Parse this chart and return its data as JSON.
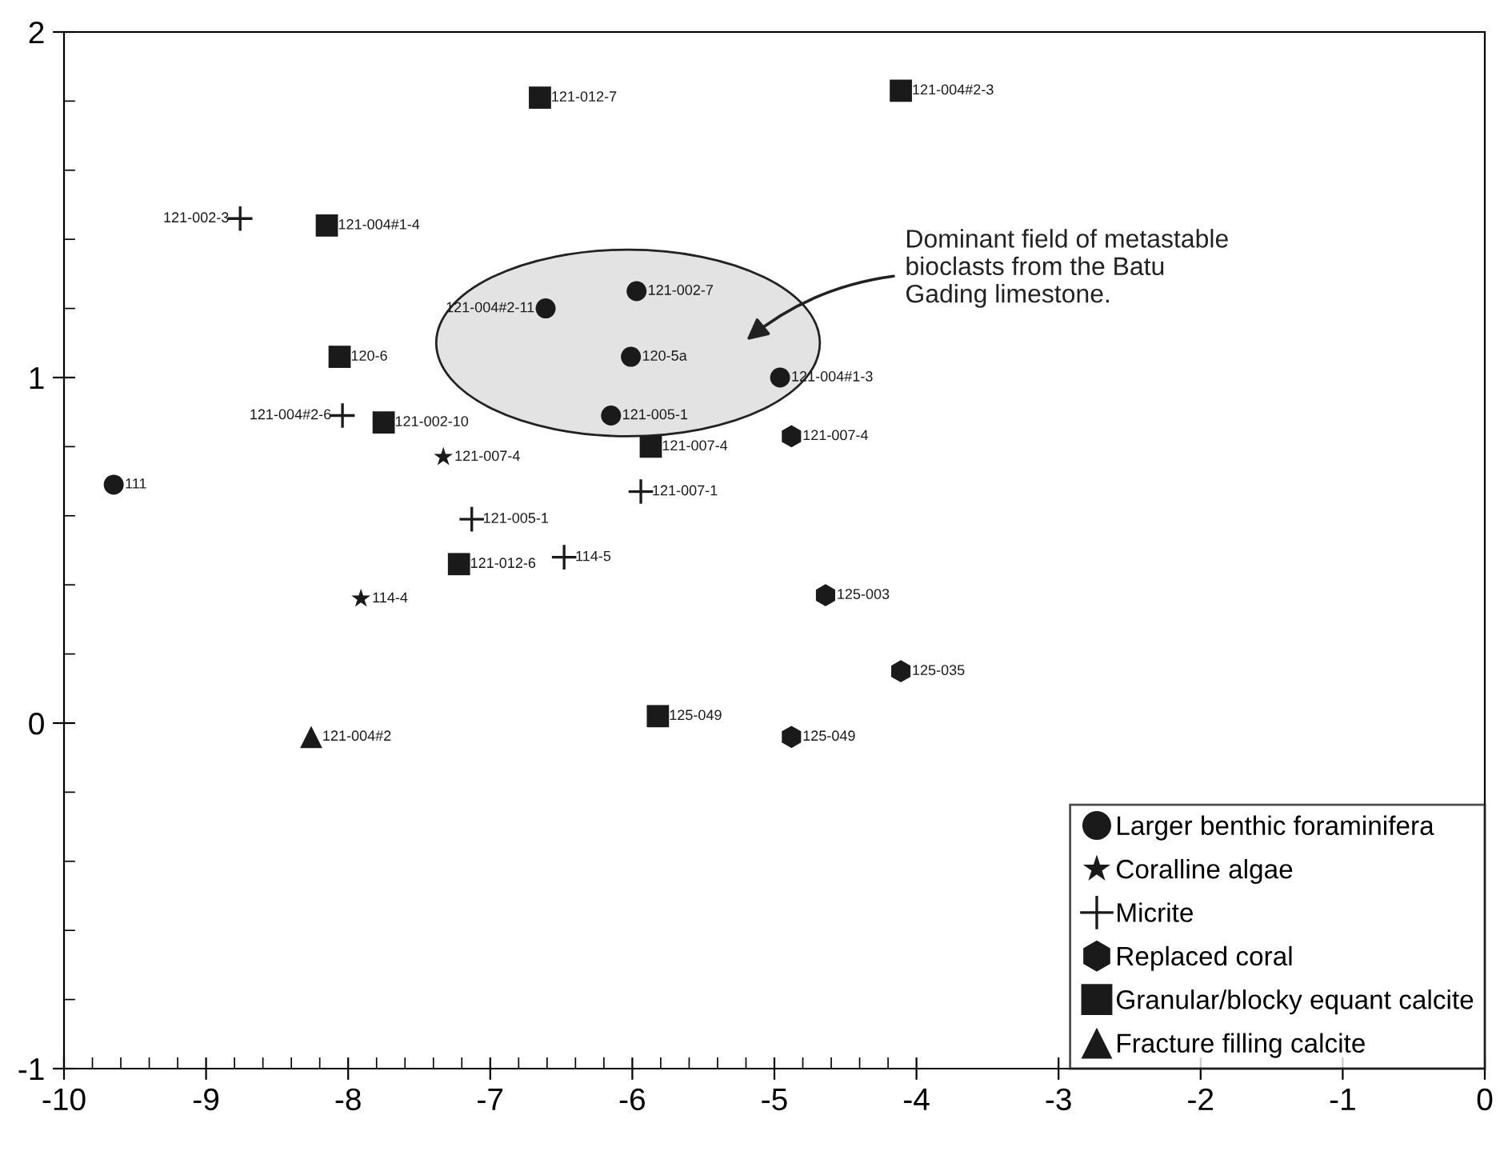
{
  "chart_data": {
    "type": "scatter",
    "xlim": [
      -10,
      0
    ],
    "ylim": [
      -1,
      2
    ],
    "xticks": [
      -10,
      -9,
      -8,
      -7,
      -6,
      -5,
      -4,
      -3,
      -2,
      -1,
      0,
      {
        "value": -9.8,
        "label": null
      },
      {
        "value": -9.6,
        "label": null
      },
      {
        "value": -9.4,
        "label": null
      },
      {
        "value": -9.2,
        "label": null
      },
      {
        "value": -8.8,
        "label": null
      },
      {
        "value": -8.6,
        "label": null
      },
      {
        "value": -8.4,
        "label": null
      },
      {
        "value": -8.2,
        "label": null
      },
      {
        "value": -7.8,
        "label": null
      },
      {
        "value": -7.6,
        "label": null
      },
      {
        "value": -7.4,
        "label": null
      },
      {
        "value": -7.2,
        "label": null
      },
      {
        "value": -6.8,
        "label": null
      },
      {
        "value": -6.6,
        "label": null
      },
      {
        "value": -6.4,
        "label": null
      },
      {
        "value": -6.2,
        "label": null
      },
      {
        "value": -5.8,
        "label": null
      },
      {
        "value": -5.6,
        "label": null
      },
      {
        "value": -5.4,
        "label": null
      },
      {
        "value": -5.2,
        "label": null
      },
      {
        "value": -4.8,
        "label": null
      },
      {
        "value": -4.6,
        "label": null
      },
      {
        "value": -4.4,
        "label": null
      },
      {
        "value": -4.2,
        "label": null
      }
    ],
    "yticks": [
      -1,
      0,
      1,
      2,
      {
        "value": -0.8,
        "label": null
      },
      {
        "value": -0.6,
        "label": null
      },
      {
        "value": -0.4,
        "label": null
      },
      {
        "value": -0.2,
        "label": null
      },
      {
        "value": 0.2,
        "label": null
      },
      {
        "value": 0.4,
        "label": null
      },
      {
        "value": 0.6,
        "label": null
      },
      {
        "value": 0.8,
        "label": null
      },
      {
        "value": 1.2,
        "label": null
      },
      {
        "value": 1.4,
        "label": null
      },
      {
        "value": 1.6,
        "label": null
      },
      {
        "value": 1.8,
        "label": null
      }
    ],
    "grid": false,
    "legend": "bottom right",
    "series": [
      {
        "name": "Larger benthic foraminifera",
        "color": "#1a1a1a",
        "marker": "circle",
        "x": [
          -9.65,
          -6.61,
          -5.97,
          -6.01,
          -6.15,
          -4.96
        ],
        "values": [
          0.69,
          1.2,
          1.25,
          1.06,
          0.89,
          1.0
        ]
      },
      {
        "name": "Coralline algae",
        "color": "#1a1a1a",
        "marker": "star",
        "x": [
          -7.33,
          -7.91
        ],
        "values": [
          0.77,
          0.36
        ]
      },
      {
        "name": "Micrite",
        "color": "#1a1a1a",
        "marker": "cross",
        "x": [
          -8.76,
          -8.04,
          -7.13,
          -5.94,
          -6.48
        ],
        "values": [
          1.46,
          0.89,
          0.59,
          0.67,
          0.48
        ]
      },
      {
        "name": "Replaced coral",
        "color": "#1a1a1a",
        "x": [
          -4.88,
          -4.64,
          -4.11,
          -4.88
        ],
        "values": [
          0.83,
          0.37,
          0.15,
          -0.04
        ]
      },
      {
        "name": "Granular/blocky equant calcite",
        "color": "#1a1a1a",
        "marker": "square",
        "x": [
          -6.65,
          -4.11,
          -8.15,
          -8.06,
          -7.75,
          -5.87,
          -7.22,
          -5.82
        ],
        "values": [
          1.81,
          1.83,
          1.44,
          1.06,
          0.87,
          0.8,
          0.46,
          0.02
        ]
      },
      {
        "name": "Fracture filling calcite",
        "color": "#1a1a1a",
        "marker": "triangle",
        "x": [
          -8.26
        ],
        "values": [
          -0.04
        ]
      }
    ],
    "annotations": [
      "Dominant field of metastable\nbioclasts from the Batu\nGading limestone.",
      {
        "text": "111",
        "x": -9.65,
        "y": 0.69
      },
      {
        "text": "121-004#2-11",
        "x": -6.61,
        "y": 1.2
      },
      {
        "text": "121-002-7",
        "x": -5.97,
        "y": 1.25
      },
      {
        "text": "120-5a",
        "x": -6.01,
        "y": 1.06
      },
      {
        "text": "121-005-1",
        "x": -6.15,
        "y": 0.89
      },
      {
        "text": "121-004#1-3",
        "x": -4.96,
        "y": 1.0
      },
      {
        "text": "121-007-4",
        "x": -7.33,
        "y": 0.77
      },
      {
        "text": "114-4",
        "x": -7.91,
        "y": 0.36
      },
      {
        "text": "121-002-3",
        "x": -8.76,
        "y": 1.46
      },
      {
        "text": "121-004#2-6",
        "x": -8.04,
        "y": 0.89
      },
      {
        "text": "121-005-1",
        "x": -7.13,
        "y": 0.59
      },
      {
        "text": "121-007-1",
        "x": -5.94,
        "y": 0.67
      },
      {
        "text": "114-5",
        "x": -6.48,
        "y": 0.48
      },
      {
        "text": "121-007-4",
        "x": -4.88,
        "y": 0.83
      },
      {
        "text": "125-003",
        "x": -4.64,
        "y": 0.37
      },
      {
        "text": "125-035",
        "x": -4.11,
        "y": 0.15
      },
      {
        "text": "125-049",
        "x": -4.88,
        "y": -0.04
      },
      {
        "text": "121-012-7",
        "x": -6.65,
        "y": 1.81
      },
      {
        "text": "121-004#2-3",
        "x": -4.11,
        "y": 1.83
      },
      {
        "text": "121-004#1-4",
        "x": -8.15,
        "y": 1.44
      },
      {
        "text": "120-6",
        "x": -8.06,
        "y": 1.06
      },
      {
        "text": "121-002-10",
        "x": -7.75,
        "y": 0.87
      },
      {
        "text": "121-007-4",
        "x": -5.87,
        "y": 0.8
      },
      {
        "text": "121-012-6",
        "x": -7.22,
        "y": 0.46
      },
      {
        "text": "125-049",
        "x": -5.82,
        "y": 0.02
      },
      {
        "text": "121-004#2",
        "x": -8.26,
        "y": -0.04
      }
    ]
  }
}
